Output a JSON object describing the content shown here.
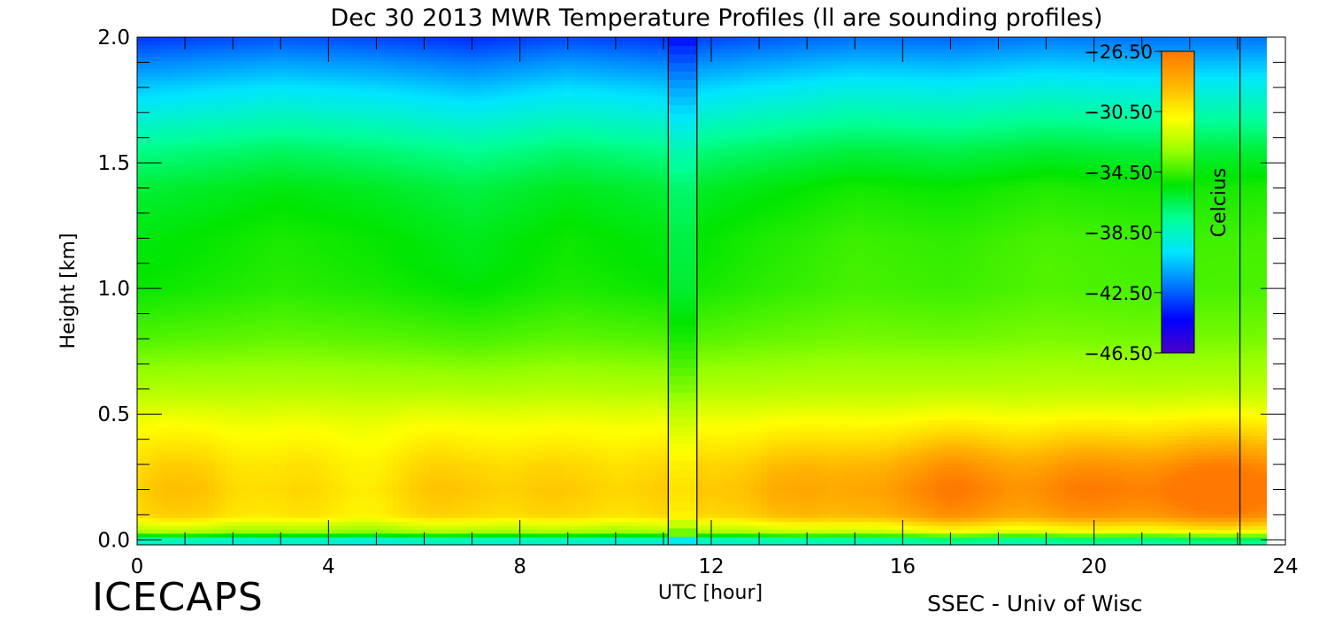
{
  "chart_data": {
    "type": "heatmap",
    "title": "Dec 30 2013 MWR Temperature Profiles (ll are sounding profiles)",
    "xlabel": "UTC [hour]",
    "ylabel": "Height [km]",
    "xlim": [
      0,
      24
    ],
    "ylim": [
      -0.02,
      2.0
    ],
    "xticks": [
      0,
      4,
      8,
      12,
      16,
      20,
      24
    ],
    "yticks": [
      0.0,
      0.5,
      1.0,
      1.5,
      2.0
    ],
    "sounding_times": [
      11.1,
      11.7,
      23.05
    ],
    "sounding_profile_hours": [
      11.1,
      11.7
    ],
    "data_end_hour": 23.6,
    "colorbar": {
      "label": "Celcius",
      "ticks": [
        "-26.50",
        "-30.50",
        "-34.50",
        "-38.50",
        "-42.50",
        "-46.50"
      ],
      "range": [
        -46.5,
        -26.5
      ],
      "colors": [
        "#4a00c8",
        "#0000ff",
        "#0078ff",
        "#00e6ff",
        "#00ff96",
        "#00e600",
        "#96ff00",
        "#ffff00",
        "#ffb400",
        "#ff7800"
      ]
    },
    "heights_km": [
      0.0,
      0.03,
      0.1,
      0.2,
      0.3,
      0.45,
      0.6,
      0.8,
      1.0,
      1.2,
      1.4,
      1.55,
      1.7,
      1.8,
      1.9,
      2.0
    ],
    "base_profile_celsius": [
      -39,
      -33,
      -29.8,
      -29.4,
      -29.8,
      -31,
      -32.5,
      -33.8,
      -34.6,
      -34.8,
      -35.4,
      -36.6,
      -38.4,
      -39.6,
      -41,
      -42.5
    ],
    "surface_warmth_by_hour": [
      {
        "hour": 0,
        "celsius_offset": -0.2
      },
      {
        "hour": 1.5,
        "celsius_offset": 0.3
      },
      {
        "hour": 3,
        "celsius_offset": -0.7
      },
      {
        "hour": 5,
        "celsius_offset": -0.6
      },
      {
        "hour": 7.3,
        "celsius_offset": 0.3
      },
      {
        "hour": 9,
        "celsius_offset": -0.3
      },
      {
        "hour": 10.5,
        "celsius_offset": 0.1
      },
      {
        "hour": 12,
        "celsius_offset": -0.2
      },
      {
        "hour": 13.3,
        "celsius_offset": 1.3
      },
      {
        "hour": 14.5,
        "celsius_offset": 0.7
      },
      {
        "hour": 16,
        "celsius_offset": 2.1
      },
      {
        "hour": 17,
        "celsius_offset": 2.6
      },
      {
        "hour": 18.5,
        "celsius_offset": 2.2
      },
      {
        "hour": 20,
        "celsius_offset": 2.5
      },
      {
        "hour": 21.8,
        "celsius_offset": 3.2
      },
      {
        "hour": 23,
        "celsius_offset": 3.4
      },
      {
        "hour": 24,
        "celsius_offset": 3.4
      }
    ],
    "upper_air_by_hour": [
      {
        "hour": 0,
        "celsius_offset": -0.8
      },
      {
        "hour": 3,
        "celsius_offset": -0.2
      },
      {
        "hour": 5,
        "celsius_offset": -0.5
      },
      {
        "hour": 7,
        "celsius_offset": -1.0
      },
      {
        "hour": 9,
        "celsius_offset": -0.4
      },
      {
        "hour": 11,
        "celsius_offset": -0.8
      },
      {
        "hour": 13,
        "celsius_offset": -0.2
      },
      {
        "hour": 15,
        "celsius_offset": 0.3
      },
      {
        "hour": 17,
        "celsius_offset": 0.1
      },
      {
        "hour": 19,
        "celsius_offset": 0.5
      },
      {
        "hour": 21,
        "celsius_offset": 0.3
      },
      {
        "hour": 24,
        "celsius_offset": 0.4
      }
    ]
  },
  "branding": {
    "left": "ICECAPS",
    "right": "SSEC - Univ of Wisc"
  }
}
